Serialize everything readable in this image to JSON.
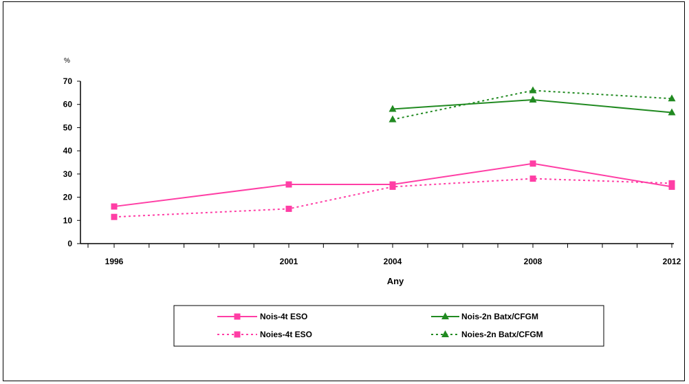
{
  "chart_data": {
    "type": "line",
    "title": "",
    "ylabel": "%",
    "xlabel": "Any",
    "x": [
      1996,
      2001,
      2004,
      2008,
      2012
    ],
    "x_tick_labels": [
      "1996",
      "2001",
      "2004",
      "2008",
      "2012"
    ],
    "xlim": [
      1996,
      2012
    ],
    "ylim": [
      0,
      70
    ],
    "y_ticks": [
      0,
      10,
      20,
      30,
      40,
      50,
      60,
      70
    ],
    "grid": false,
    "legend_position": "bottom",
    "series": [
      {
        "name": "Nois-4t ESO",
        "color": "#ff3ea5",
        "dash": "solid",
        "marker": "square",
        "values": [
          16,
          25.5,
          25.5,
          34.5,
          24.5
        ]
      },
      {
        "name": "Noies-4t ESO",
        "color": "#ff3ea5",
        "dash": "dotted",
        "marker": "square",
        "values": [
          11.5,
          15,
          24.5,
          28,
          26
        ]
      },
      {
        "name": "Nois-2n Batx/CFGM",
        "color": "#218a21",
        "dash": "solid",
        "marker": "triangle",
        "values": [
          null,
          null,
          58,
          62,
          56.5
        ]
      },
      {
        "name": "Noies-2n Batx/CFGM",
        "color": "#218a21",
        "dash": "dotted",
        "marker": "triangle",
        "values": [
          null,
          null,
          53.5,
          66,
          62.5
        ]
      }
    ]
  }
}
